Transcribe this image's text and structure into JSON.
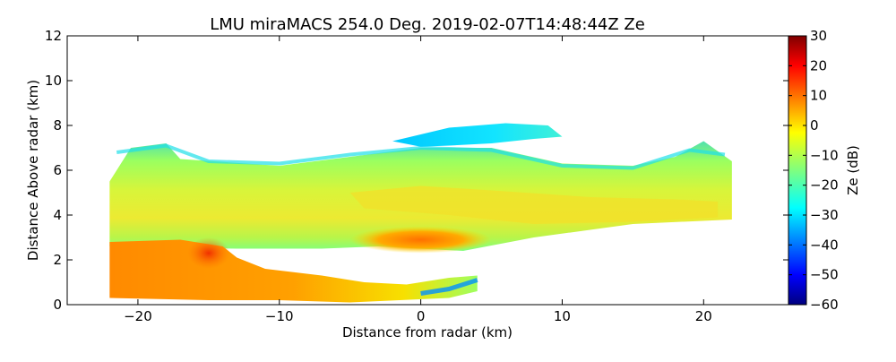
{
  "chart_data": {
    "type": "heatmap",
    "title": "LMU miraMACS 254.0 Deg. 2019-02-07T14:48:44Z  Ze",
    "xlabel": "Distance from radar (km)",
    "ylabel": "Distance Above radar  (km)",
    "xlim": [
      -25,
      26
    ],
    "ylim": [
      0,
      12
    ],
    "x_ticks": [
      -20,
      -10,
      0,
      10,
      20
    ],
    "y_ticks": [
      0,
      2,
      4,
      6,
      8,
      10,
      12
    ],
    "colorbar": {
      "label": "Ze (dB)",
      "range": [
        -60,
        30
      ],
      "ticks": [
        30,
        20,
        10,
        0,
        -10,
        -20,
        -30,
        -40,
        -50,
        -60
      ],
      "colormap": "jet"
    },
    "regions": [
      {
        "name": "main-cloud-layer",
        "x_range": [
          -22,
          22
        ],
        "y_top_left": 7.0,
        "y_top_right": 7.0,
        "y_bottom_left": 3.0,
        "y_bottom_right": 3.8,
        "typical_ze": -15
      },
      {
        "name": "upper-cirrus",
        "x_range": [
          -2,
          10
        ],
        "y_range": [
          7.0,
          8.2
        ],
        "typical_ze": -28
      },
      {
        "name": "melting-layer",
        "x_range": [
          -5,
          5
        ],
        "y_range": [
          2.6,
          3.2
        ],
        "typical_ze": 5
      },
      {
        "name": "low-precipitation",
        "x_range": [
          -22,
          4
        ],
        "y_range": [
          0.3,
          2.8
        ],
        "typical_ze": 12
      }
    ]
  },
  "colors": {
    "jet_stops": [
      "#00007f",
      "#0000ff",
      "#007fff",
      "#00ffff",
      "#7fff7f",
      "#ffff00",
      "#ff7f00",
      "#ff0000",
      "#7f0000"
    ]
  }
}
